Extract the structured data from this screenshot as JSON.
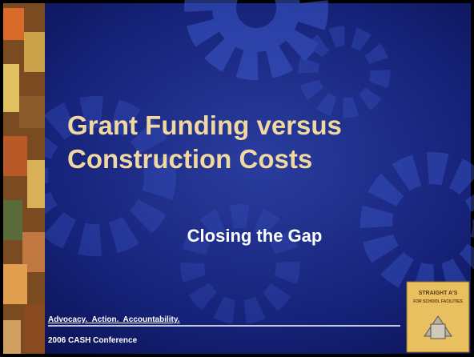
{
  "slide": {
    "title_lines": [
      "Grant Funding versus",
      "Construction Costs"
    ],
    "subtitle": "Closing the Gap",
    "footer": {
      "tagline": "Advocacy.  Action.  Accountability.",
      "event": "2006 CASH Conference"
    },
    "logo": {
      "text_top": "STRAIGHT A'S",
      "text_bottom": "FOR SCHOOL FACILITIES"
    }
  }
}
